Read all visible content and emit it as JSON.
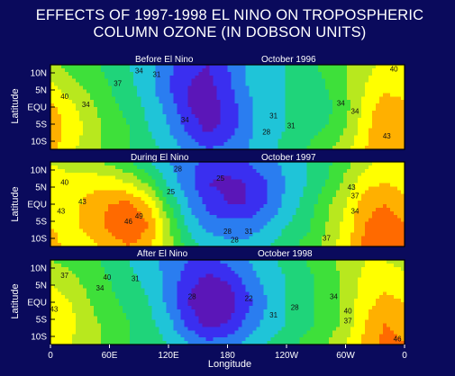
{
  "figure": {
    "title_line1": "EFFECTS OF 1997-1998 EL NINO ON TROPOSPHERIC",
    "title_line2": "COLUMN OZONE (IN DOBSON UNITS)"
  },
  "colors": {
    "background": "#0a0a5c",
    "scale": [
      "#5b16b8",
      "#3a2ff0",
      "#2a7df0",
      "#1fc4d8",
      "#1fd47a",
      "#3ee03a",
      "#b8e81e",
      "#ffff00",
      "#ffb000",
      "#ff6a00",
      "#e81010"
    ]
  },
  "chart_data": [
    {
      "type": "heatmap",
      "panel_title": "Before El Nino",
      "date_label": "October 1996",
      "xlabel": "",
      "ylabel": "Latitude",
      "y_ticks": [
        "10N",
        "5N",
        "EQU",
        "5S",
        "10S"
      ],
      "contour_labels": [
        "34",
        "31",
        "37",
        "40",
        "40",
        "34",
        "34",
        "34",
        "28",
        "31",
        "31",
        "34",
        "43"
      ],
      "field": {
        "lon": [
          0,
          20,
          40,
          60,
          80,
          100,
          120,
          140,
          160,
          180,
          200,
          220,
          240,
          260,
          280,
          300,
          320,
          340,
          360
        ],
        "lat": [
          12,
          6,
          0,
          -6,
          -12
        ],
        "values": [
          [
            38,
            36,
            35,
            33,
            31,
            29,
            26,
            23,
            22,
            25,
            28,
            30,
            31,
            33,
            35,
            37,
            39,
            41,
            40
          ],
          [
            41,
            38,
            36,
            34,
            32,
            29,
            25,
            22,
            21,
            24,
            28,
            30,
            31,
            32,
            34,
            37,
            40,
            42,
            41
          ],
          [
            44,
            41,
            38,
            35,
            33,
            30,
            27,
            22,
            20,
            23,
            27,
            30,
            31,
            32,
            33,
            36,
            41,
            45,
            44
          ],
          [
            45,
            42,
            39,
            36,
            34,
            31,
            28,
            24,
            21,
            23,
            27,
            30,
            31,
            33,
            34,
            37,
            42,
            46,
            46
          ],
          [
            44,
            41,
            38,
            36,
            34,
            32,
            30,
            27,
            25,
            26,
            28,
            30,
            32,
            34,
            36,
            39,
            43,
            46,
            45
          ]
        ]
      }
    },
    {
      "type": "heatmap",
      "panel_title": "During El Nino",
      "date_label": "October 1997",
      "xlabel": "",
      "ylabel": "Latitude",
      "y_ticks": [
        "10N",
        "5N",
        "EQU",
        "5S",
        "10S"
      ],
      "contour_labels": [
        "40",
        "43",
        "43",
        "46",
        "49",
        "28",
        "25",
        "25",
        "28",
        "31",
        "28",
        "37",
        "43",
        "34",
        "37"
      ],
      "field": {
        "lon": [
          0,
          20,
          40,
          60,
          80,
          100,
          120,
          140,
          160,
          180,
          200,
          220,
          240,
          260,
          280,
          300,
          320,
          340,
          360
        ],
        "lat": [
          12,
          6,
          0,
          -6,
          -12
        ],
        "values": [
          [
            40,
            39,
            38,
            36,
            34,
            31,
            28,
            26,
            24,
            24,
            25,
            27,
            29,
            31,
            33,
            36,
            39,
            41,
            40
          ],
          [
            41,
            41,
            42,
            42,
            40,
            36,
            30,
            26,
            22,
            21,
            22,
            25,
            28,
            31,
            34,
            38,
            42,
            43,
            42
          ],
          [
            42,
            42,
            44,
            46,
            47,
            43,
            34,
            28,
            24,
            22,
            22,
            25,
            29,
            32,
            36,
            40,
            45,
            46,
            44
          ],
          [
            43,
            42,
            44,
            47,
            49,
            46,
            38,
            30,
            27,
            26,
            26,
            28,
            31,
            33,
            37,
            41,
            46,
            48,
            46
          ],
          [
            44,
            42,
            42,
            44,
            46,
            44,
            38,
            33,
            30,
            29,
            29,
            31,
            33,
            35,
            38,
            42,
            47,
            48,
            46
          ]
        ]
      }
    },
    {
      "type": "heatmap",
      "panel_title": "After El Nino",
      "date_label": "October 1998",
      "xlabel": "Longitude",
      "ylabel": "Latitude",
      "x_ticks": [
        "0",
        "60E",
        "120E",
        "180",
        "120W",
        "60W",
        "0"
      ],
      "y_ticks": [
        "10N",
        "5N",
        "EQU",
        "5S",
        "10S"
      ],
      "contour_labels": [
        "37",
        "40",
        "34",
        "31",
        "28",
        "22",
        "28",
        "31",
        "43",
        "40",
        "34",
        "37",
        "46"
      ],
      "field": {
        "lon": [
          0,
          20,
          40,
          60,
          80,
          100,
          120,
          140,
          160,
          180,
          200,
          220,
          240,
          260,
          280,
          300,
          320,
          340,
          360
        ],
        "lat": [
          12,
          6,
          0,
          -6,
          -12
        ],
        "values": [
          [
            37,
            36,
            35,
            33,
            31,
            29,
            27,
            25,
            24,
            26,
            28,
            30,
            32,
            34,
            36,
            38,
            40,
            40,
            39
          ],
          [
            40,
            38,
            36,
            34,
            32,
            30,
            27,
            23,
            21,
            22,
            26,
            29,
            31,
            33,
            35,
            38,
            41,
            42,
            41
          ],
          [
            42,
            40,
            37,
            35,
            33,
            31,
            27,
            22,
            19,
            20,
            24,
            28,
            31,
            33,
            35,
            38,
            42,
            44,
            43
          ],
          [
            43,
            41,
            38,
            36,
            34,
            32,
            29,
            24,
            21,
            22,
            26,
            29,
            31,
            33,
            35,
            38,
            43,
            46,
            45
          ],
          [
            43,
            40,
            38,
            36,
            34,
            33,
            31,
            28,
            26,
            27,
            29,
            31,
            33,
            35,
            37,
            40,
            44,
            47,
            46
          ]
        ]
      }
    }
  ]
}
